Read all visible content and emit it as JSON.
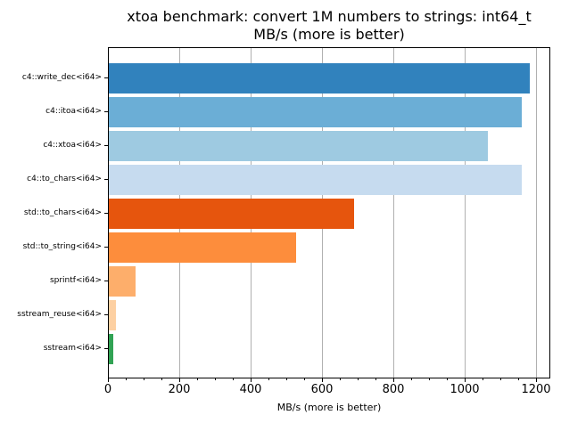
{
  "chart_data": {
    "type": "bar",
    "orientation": "horizontal",
    "title": "xtoa benchmark: convert 1M numbers to strings: int64_t",
    "subtitle": "MB/s (more is better)",
    "xlabel": "MB/s (more is better)",
    "ylabel": "",
    "xlim": [
      0,
      1227
    ],
    "grid": "x",
    "categories": [
      "c4::write_dec<i64>",
      "c4::itoa<i64>",
      "c4::xtoa<i64>",
      "c4::to_chars<i64>",
      "std::to_chars<i64>",
      "std::to_string<i64>",
      "sprintf<i64>",
      "sstream_reuse<i64>",
      "sstream<i64>"
    ],
    "values": [
      1180,
      1157,
      1062,
      1157,
      687,
      525,
      76,
      19,
      12
    ],
    "colors": [
      "#3182bd",
      "#6baed6",
      "#9ecae1",
      "#c6dbef",
      "#e6550d",
      "#fd8d3c",
      "#fdae6b",
      "#fdd0a2",
      "#31a354"
    ],
    "xticks": [
      "0",
      "200",
      "400",
      "600",
      "800",
      "1000",
      "1200"
    ]
  }
}
